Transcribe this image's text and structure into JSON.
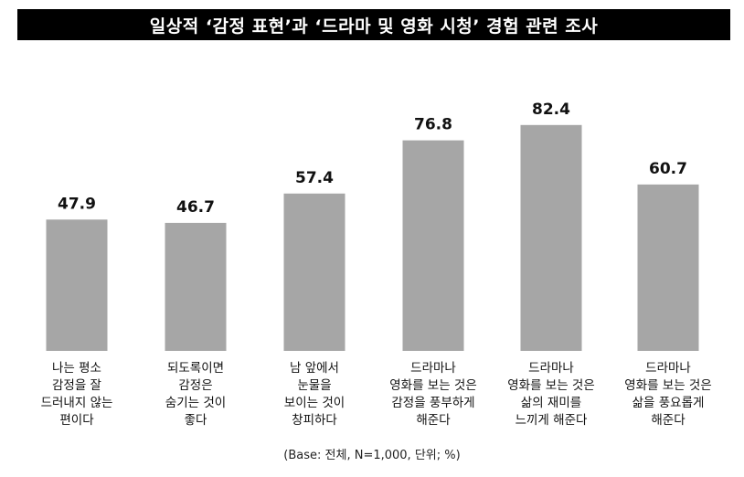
{
  "title": "일상적 ‘감정 표현’과 ‘드라마 및 영화 시청’ 경험 관련 조사",
  "footnote": "(Base: 전체, N=1,000, 단위; %)",
  "colors": {
    "bar": "#a6a6a6",
    "title_bg": "#000000",
    "title_text": "#ffffff"
  },
  "chart_data": {
    "type": "bar",
    "title": "일상적 ‘감정 표현’과 ‘드라마 및 영화 시청’ 경험 관련 조사",
    "categories": [
      [
        "나는 평소",
        "감정을 잘",
        "드러내지 않는",
        "편이다"
      ],
      [
        "되도록이면",
        "감정은",
        "숨기는 것이",
        "좋다"
      ],
      [
        "남 앞에서",
        "눈물을",
        "보이는 것이",
        "창피하다"
      ],
      [
        "드라마나",
        "영화를 보는 것은",
        "감정을 풍부하게",
        "해준다"
      ],
      [
        "드라마나",
        "영화를 보는 것은",
        "삶의 재미를",
        "느끼게 해준다"
      ],
      [
        "드라마나",
        "영화를 보는 것은",
        "삶을 풍요롭게",
        "해준다"
      ]
    ],
    "values": [
      47.9,
      46.7,
      57.4,
      76.8,
      82.4,
      60.7
    ],
    "value_labels": [
      "47.9",
      "46.7",
      "57.4",
      "76.8",
      "82.4",
      "60.7"
    ],
    "ylim": [
      0,
      100
    ],
    "grid": false
  }
}
